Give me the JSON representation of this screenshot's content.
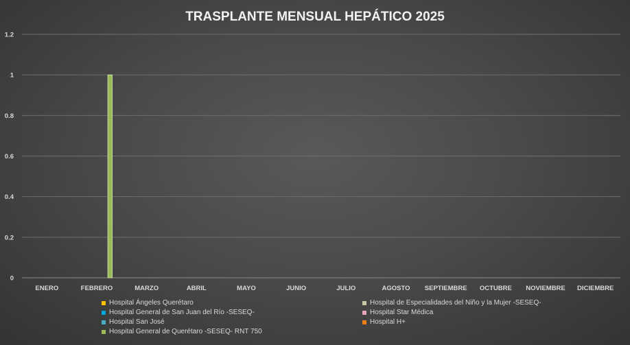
{
  "chart_data": {
    "type": "bar",
    "title": "TRASPLANTE MENSUAL HEPÁTICO 2025",
    "xlabel": "",
    "ylabel": "",
    "ylim": [
      0,
      1.2
    ],
    "yticks": [
      0,
      0.2,
      0.4,
      0.6,
      0.8,
      1,
      1.2
    ],
    "ytick_labels": [
      "0",
      "0.2",
      "0.4",
      "0.6",
      "0.8",
      "1",
      "1.2"
    ],
    "grid": true,
    "legend_position": "bottom",
    "categories": [
      "ENERO",
      "FEBRERO",
      "MARZO",
      "ABRIL",
      "MAYO",
      "JUNIO",
      "JULIO",
      "AGOSTO",
      "SEPTIEMBRE",
      "OCTUBRE",
      "NOVIEMBRE",
      "DICIEMBRE"
    ],
    "series": [
      {
        "name": "Hospital Ángeles Querétaro",
        "color": "#ffc000",
        "values": [
          0,
          0,
          0,
          0,
          0,
          0,
          0,
          0,
          0,
          0,
          0,
          0
        ]
      },
      {
        "name": "Hospital de Especialidades del Niño y la Mujer -SESEQ-",
        "color": "#c9c9a8",
        "values": [
          0,
          0,
          0,
          0,
          0,
          0,
          0,
          0,
          0,
          0,
          0,
          0
        ]
      },
      {
        "name": "Hospital General de San Juan del Río -SESEQ-",
        "color": "#00a6d6",
        "values": [
          0,
          0,
          0,
          0,
          0,
          0,
          0,
          0,
          0,
          0,
          0,
          0
        ]
      },
      {
        "name": "Hospital Star Médica",
        "color": "#e6a3c0",
        "values": [
          0,
          0,
          0,
          0,
          0,
          0,
          0,
          0,
          0,
          0,
          0,
          0
        ]
      },
      {
        "name": "Hospital San José",
        "color": "#4bacc6",
        "values": [
          0,
          0,
          0,
          0,
          0,
          0,
          0,
          0,
          0,
          0,
          0,
          0
        ]
      },
      {
        "name": "Hospital H+",
        "color": "#f07e16",
        "values": [
          0,
          0,
          0,
          0,
          0,
          0,
          0,
          0,
          0,
          0,
          0,
          0
        ]
      },
      {
        "name": "Hospital General de Querétaro -SESEQ- RNT 750",
        "color": "#9bbb59",
        "values": [
          0,
          1,
          0,
          0,
          0,
          0,
          0,
          0,
          0,
          0,
          0,
          0
        ]
      }
    ]
  }
}
